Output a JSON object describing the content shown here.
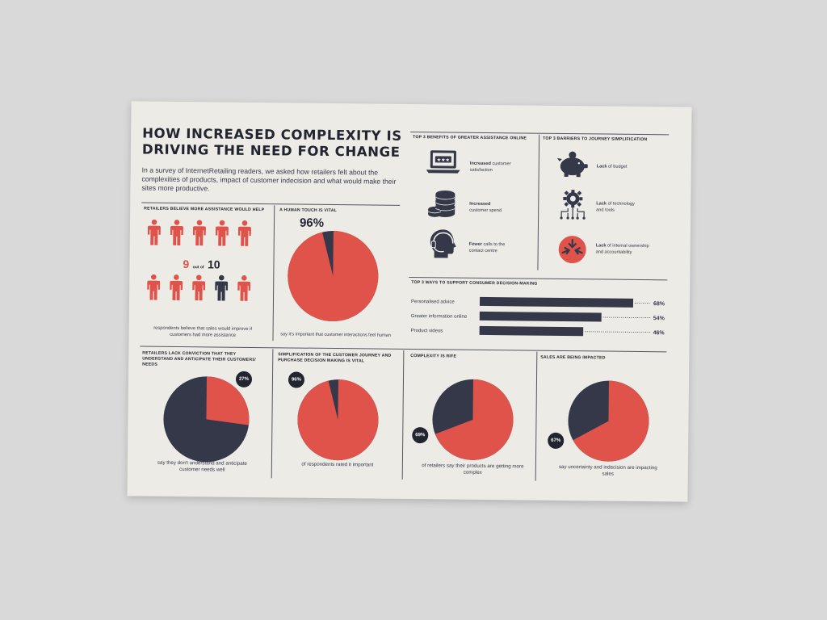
{
  "header": {
    "title_line1": "HOW INCREASED COMPLEXITY IS",
    "title_line2": "DRIVING THE NEED FOR CHANGE",
    "intro": "In a survey of InternetRetailing readers, we asked how retailers felt about the complexities of products, impact of customer indecision and what would make their sites more productive."
  },
  "colors": {
    "red": "#e0534b",
    "navy": "#353849",
    "paper": "#ecebe6"
  },
  "assistance": {
    "heading": "RETAILERS BELIEVE MORE ASSISTANCE WOULD HELP",
    "stat_num": "9",
    "stat_mid": "out of",
    "stat_den": "10",
    "caption": "respondents believe that sales would improve if customers had more assistance",
    "people": [
      "red",
      "red",
      "red",
      "red",
      "red",
      "red",
      "red",
      "red",
      "navy",
      "red"
    ]
  },
  "human": {
    "heading": "A HUMAN TOUCH IS VITAL",
    "value_label": "96%",
    "caption": "say it's important that customer interactions feel human"
  },
  "benefits": {
    "heading": "TOP 3 BENEFITS OF GREATER ASSISTANCE ONLINE",
    "items": [
      {
        "icon": "laptop-rating-icon",
        "bold": "Increased",
        "text": " customer",
        "line2": "satisfaction"
      },
      {
        "icon": "coins-stack-icon",
        "bold": "Increased",
        "text": "",
        "line2": "customer spend"
      },
      {
        "icon": "headset-agent-icon",
        "bold": "Fewer",
        "text": " calls to the",
        "line2": "contact centre"
      }
    ]
  },
  "barriers": {
    "heading": "TOP 3 BARRIERS TO JOURNEY SIMPLIFICATION",
    "items": [
      {
        "icon": "piggy-bank-icon",
        "bold": "Lack",
        "text": " of budget",
        "line2": ""
      },
      {
        "icon": "gear-network-icon",
        "bold": "Lack",
        "text": " of technology",
        "line2": "and tools"
      },
      {
        "icon": "arrows-inward-icon",
        "bold": "Lack",
        "text": " of internal ownership",
        "line2": "and accountability"
      }
    ]
  },
  "labels": {
    "conviction_heading": "RETAILERS LACK CONVICTION THAT THEY UNDERSTAND AND ANTICIPATE THEIR CUSTOMERS' NEEDS",
    "conviction_caption": "say they don't understand and anticipate customer needs well",
    "simplification_heading": "SIMPLIFICATION OF THE CUSTOMER JOURNEY AND PURCHASE DECISION MAKING IS VITAL",
    "simplification_caption": "of respondents rated it important",
    "complexity_heading": "COMPLEXITY IS RIFE",
    "complexity_caption": "of retailers say their products are getting more complex",
    "sales_heading": "SALES ARE BEING IMPACTED",
    "sales_caption": "say uncertainty and indecision are impacting sales"
  },
  "chart_data": [
    {
      "type": "bar",
      "title": "TOP 3 WAYS TO SUPPORT CONSUMER DECISION-MAKING",
      "categories": [
        "Personalised advice",
        "Greater information online",
        "Product videos"
      ],
      "values": [
        68,
        54,
        46
      ],
      "value_labels": [
        "68%",
        "54%",
        "46%"
      ],
      "orientation": "horizontal",
      "color": "#353849"
    },
    {
      "type": "pie",
      "title": "A HUMAN TOUCH IS VITAL",
      "labels": [
        "important",
        "not"
      ],
      "values": [
        96,
        4
      ],
      "value_label": "96%"
    },
    {
      "type": "pie",
      "title": "RETAILERS LACK CONVICTION THAT THEY UNDERSTAND AND ANTICIPATE THEIR CUSTOMERS' NEEDS",
      "labels": [
        "don't understand",
        "other"
      ],
      "values": [
        27,
        73
      ],
      "value_label": "27%"
    },
    {
      "type": "pie",
      "title": "SIMPLIFICATION OF THE CUSTOMER JOURNEY AND PURCHASE DECISION MAKING IS VITAL",
      "labels": [
        "important",
        "other"
      ],
      "values": [
        96,
        4
      ],
      "value_label": "96%"
    },
    {
      "type": "pie",
      "title": "COMPLEXITY IS RIFE",
      "labels": [
        "more complex",
        "other"
      ],
      "values": [
        69,
        31
      ],
      "value_label": "69%"
    },
    {
      "type": "pie",
      "title": "SALES ARE BEING IMPACTED",
      "labels": [
        "impacting sales",
        "other"
      ],
      "values": [
        67,
        33
      ],
      "value_label": "67%"
    }
  ]
}
